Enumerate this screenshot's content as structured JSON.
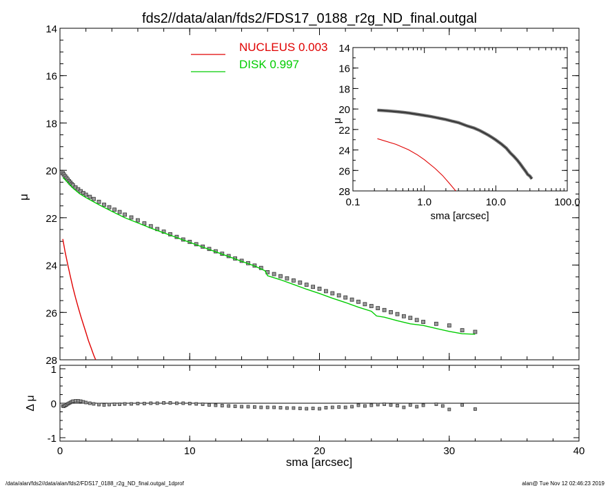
{
  "title": "fds2//data/alan/fds2/FDS17_0188_r2g_ND_final.outgal",
  "footer": {
    "left": "/data/alan/fds2//data/alan/fds2/FDS17_0188_r2g_ND_final.outgal_1dprof",
    "right": "alan@  Tue Nov 12 02:46:23 2019"
  },
  "colors": {
    "nucleus": "#e00000",
    "disk": "#00cc00",
    "data": "#555555",
    "axis": "#000000"
  },
  "chart_data": [
    {
      "id": "main",
      "type": "scatter",
      "xlabel": "sma [arcsec]",
      "ylabel": "μ",
      "xlim": [
        0,
        40
      ],
      "ylim": [
        28,
        14
      ],
      "xticks": [
        0,
        10,
        20,
        30,
        40
      ],
      "yticks": [
        14,
        16,
        18,
        20,
        22,
        24,
        26,
        28
      ],
      "legend": {
        "position": "top-center",
        "entries": [
          {
            "label": "NUCLEUS",
            "value": "0.003",
            "color": "#e00000"
          },
          {
            "label": "DISK",
            "value": "0.997",
            "color": "#00cc00"
          }
        ]
      },
      "series": [
        {
          "name": "data",
          "style": "squares",
          "x": [
            0.22,
            0.3,
            0.4,
            0.5,
            0.6,
            0.7,
            0.8,
            0.9,
            1.0,
            1.2,
            1.4,
            1.6,
            1.8,
            2.0,
            2.3,
            2.6,
            3.0,
            3.4,
            3.8,
            4.2,
            4.6,
            5.0,
            5.5,
            6.0,
            6.5,
            7.0,
            7.5,
            8.0,
            8.5,
            9.0,
            9.5,
            10.0,
            10.5,
            11.0,
            11.5,
            12.0,
            12.5,
            13.0,
            13.5,
            14.0,
            14.5,
            15.0,
            15.5,
            16.0,
            16.5,
            17.0,
            17.5,
            18.0,
            18.5,
            19.0,
            19.5,
            20.0,
            20.5,
            21.0,
            21.5,
            22.0,
            22.5,
            23.0,
            23.5,
            24.0,
            24.5,
            25.0,
            25.5,
            26.0,
            26.5,
            27.0,
            27.5,
            28.0,
            29.0,
            30.0,
            31.0,
            32.0
          ],
          "y": [
            20.12,
            20.18,
            20.25,
            20.32,
            20.39,
            20.46,
            20.52,
            20.58,
            20.63,
            20.72,
            20.8,
            20.88,
            20.96,
            21.03,
            21.12,
            21.21,
            21.33,
            21.45,
            21.56,
            21.66,
            21.76,
            21.87,
            21.99,
            22.11,
            22.24,
            22.36,
            22.48,
            22.59,
            22.7,
            22.81,
            22.92,
            23.02,
            23.12,
            23.22,
            23.32,
            23.42,
            23.52,
            23.62,
            23.72,
            23.82,
            23.92,
            24.02,
            24.12,
            24.3,
            24.38,
            24.47,
            24.56,
            24.65,
            24.74,
            24.83,
            24.92,
            25.0,
            25.1,
            25.19,
            25.28,
            25.37,
            25.46,
            25.55,
            25.65,
            25.73,
            25.82,
            25.9,
            25.99,
            26.07,
            26.16,
            26.23,
            26.32,
            26.4,
            26.48,
            26.55,
            26.75,
            26.82
          ]
        },
        {
          "name": "NUCLEUS",
          "style": "line",
          "x": [
            0.22,
            0.4,
            0.6,
            0.8,
            1.0,
            1.2,
            1.4,
            1.6,
            1.8,
            2.0,
            2.2,
            2.4,
            2.6,
            2.75
          ],
          "y": [
            22.9,
            23.45,
            23.98,
            24.48,
            24.95,
            25.38,
            25.78,
            26.15,
            26.5,
            26.85,
            27.2,
            27.5,
            27.8,
            28.0
          ]
        },
        {
          "name": "DISK",
          "style": "line",
          "x": [
            0.22,
            0.5,
            1.0,
            1.5,
            2.0,
            3.0,
            4.0,
            5.0,
            6.0,
            7.0,
            8.0,
            9.0,
            10.0,
            11.0,
            12.0,
            13.0,
            14.0,
            15.0,
            15.8,
            16.0,
            17.0,
            18.0,
            19.0,
            20.0,
            21.0,
            22.0,
            23.0,
            24.0,
            24.4,
            25.0,
            26.0,
            27.0,
            28.0,
            29.0,
            30.0,
            31.0,
            32.0
          ],
          "y": [
            20.3,
            20.45,
            20.75,
            20.98,
            21.15,
            21.45,
            21.73,
            22.0,
            22.22,
            22.44,
            22.64,
            22.84,
            23.04,
            23.24,
            23.44,
            23.64,
            23.84,
            24.04,
            24.24,
            24.45,
            24.62,
            24.82,
            25.02,
            25.2,
            25.4,
            25.58,
            25.78,
            25.95,
            26.15,
            26.2,
            26.35,
            26.48,
            26.55,
            26.68,
            26.8,
            26.9,
            26.92
          ]
        }
      ]
    },
    {
      "id": "inset",
      "type": "scatter",
      "xscale": "log",
      "xlabel": "sma [arcsec]",
      "ylabel": "μ",
      "xlim": [
        0.1,
        100
      ],
      "ylim": [
        28,
        14
      ],
      "xticks": [
        0.1,
        1,
        10,
        100
      ],
      "xticklabels": [
        "0.1",
        "1.0",
        "10.0",
        "100.0"
      ],
      "yticks": [
        14,
        16,
        18,
        20,
        22,
        24,
        26,
        28
      ],
      "series": [
        {
          "name": "data",
          "style": "thick-line",
          "x": [
            0.22,
            0.3,
            0.4,
            0.5,
            0.6,
            0.8,
            1.0,
            1.2,
            1.5,
            2.0,
            2.5,
            3.0,
            4.0,
            5.0,
            6.0,
            7.0,
            8.0,
            9.0,
            10.0,
            12.0,
            14.0,
            16.0,
            18.0,
            20.0,
            22.0,
            24.0,
            26.0,
            28.0,
            30.0,
            32.0
          ],
          "y": [
            20.12,
            20.18,
            20.25,
            20.32,
            20.39,
            20.52,
            20.63,
            20.72,
            20.85,
            21.03,
            21.2,
            21.33,
            21.66,
            21.87,
            22.11,
            22.36,
            22.59,
            22.81,
            23.02,
            23.42,
            23.82,
            24.3,
            24.65,
            25.0,
            25.37,
            25.73,
            26.07,
            26.4,
            26.55,
            26.82
          ]
        },
        {
          "name": "NUCLEUS",
          "style": "line",
          "x": [
            0.22,
            0.4,
            0.6,
            0.8,
            1.0,
            1.4,
            1.8,
            2.2,
            2.75
          ],
          "y": [
            22.9,
            23.45,
            23.98,
            24.48,
            24.95,
            25.78,
            26.5,
            27.2,
            28.0
          ]
        }
      ]
    },
    {
      "id": "residual",
      "type": "scatter",
      "xlabel": "",
      "ylabel": "Δ μ",
      "xlim": [
        0,
        40
      ],
      "ylim": [
        -1.1,
        1.1
      ],
      "yticks": [
        -1,
        0,
        1
      ],
      "zero_line": 0,
      "series": [
        {
          "name": "residual",
          "style": "squares",
          "x": [
            0.22,
            0.3,
            0.4,
            0.5,
            0.6,
            0.7,
            0.8,
            0.9,
            1.0,
            1.2,
            1.4,
            1.6,
            1.8,
            2.0,
            2.3,
            2.6,
            3.0,
            3.4,
            3.8,
            4.2,
            4.6,
            5.0,
            5.5,
            6.0,
            6.5,
            7.0,
            7.5,
            8.0,
            8.5,
            9.0,
            9.5,
            10.0,
            10.5,
            11.0,
            11.5,
            12.0,
            12.5,
            13.0,
            13.5,
            14.0,
            14.5,
            15.0,
            15.5,
            16.0,
            16.5,
            17.0,
            17.5,
            18.0,
            18.5,
            19.0,
            19.5,
            20.0,
            20.5,
            21.0,
            21.5,
            22.0,
            22.5,
            23.0,
            23.5,
            24.0,
            24.5,
            25.0,
            25.5,
            26.0,
            26.5,
            27.0,
            27.5,
            28.0,
            29.0,
            29.5,
            30.0,
            31.0,
            32.0
          ],
          "y": [
            -0.08,
            -0.09,
            -0.07,
            -0.05,
            -0.02,
            0.0,
            0.02,
            0.04,
            0.06,
            0.07,
            0.07,
            0.06,
            0.04,
            0.02,
            0.0,
            -0.02,
            -0.04,
            -0.05,
            -0.04,
            -0.03,
            -0.03,
            -0.02,
            -0.02,
            -0.01,
            -0.01,
            0.0,
            0.0,
            0.01,
            0.01,
            0.0,
            0.0,
            -0.01,
            -0.02,
            -0.03,
            -0.05,
            -0.06,
            -0.07,
            -0.08,
            -0.09,
            -0.1,
            -0.1,
            -0.11,
            -0.12,
            -0.12,
            -0.12,
            -0.13,
            -0.14,
            -0.14,
            -0.15,
            -0.16,
            -0.15,
            -0.16,
            -0.13,
            -0.12,
            -0.11,
            -0.12,
            -0.1,
            -0.06,
            -0.08,
            -0.06,
            -0.04,
            -0.03,
            -0.05,
            -0.07,
            -0.12,
            -0.05,
            -0.1,
            -0.06,
            -0.03,
            -0.08,
            -0.18,
            -0.05,
            -0.17
          ]
        }
      ]
    }
  ]
}
